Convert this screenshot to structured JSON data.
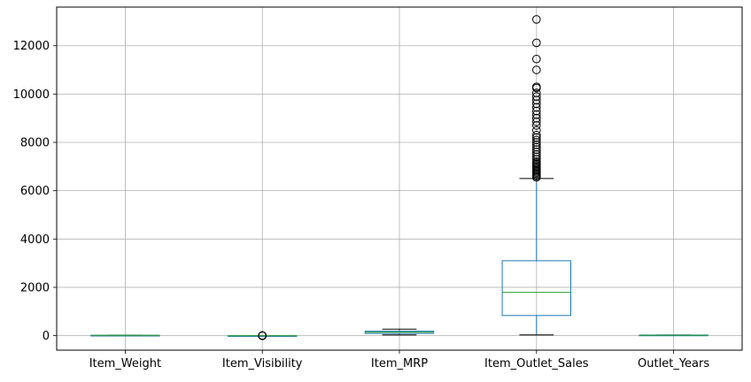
{
  "chart_data": {
    "type": "box",
    "title": "",
    "xlabel": "",
    "ylabel": "",
    "ylim": [
      -600,
      13600
    ],
    "yticks": [
      0,
      2000,
      4000,
      6000,
      8000,
      10000,
      12000
    ],
    "ytick_labels": [
      "0",
      "2000",
      "4000",
      "6000",
      "8000",
      "10000",
      "12000"
    ],
    "grid": true,
    "colors": {
      "box": "#1f77b4",
      "median": "#2ca02c",
      "whisker": "#000000",
      "grid": "#b0b0b0",
      "flier": "#000000"
    },
    "categories": [
      "Item_Weight",
      "Item_Visibility",
      "Item_MRP",
      "Item_Outlet_Sales",
      "Outlet_Years"
    ],
    "boxes": [
      {
        "name": "Item_Weight",
        "whislo": 4.5,
        "q1": 8.8,
        "med": 12.6,
        "q3": 16.0,
        "whishi": 21.4,
        "fliers": []
      },
      {
        "name": "Item_Visibility",
        "whislo": 0,
        "q1": 0.03,
        "med": 0.05,
        "q3": 0.09,
        "whishi": 0.19,
        "fliers": [
          0.2,
          0.22,
          0.25,
          0.28,
          0.3,
          0.33
        ]
      },
      {
        "name": "Item_MRP",
        "whislo": 31,
        "q1": 94,
        "med": 143,
        "q3": 186,
        "whishi": 267,
        "fliers": []
      },
      {
        "name": "Item_Outlet_Sales",
        "whislo": 33,
        "q1": 834,
        "med": 1794,
        "q3": 3101,
        "whishi": 6503,
        "fliers": [
          6550,
          6600,
          6650,
          6700,
          6750,
          6800,
          6850,
          6900,
          6950,
          7000,
          7050,
          7100,
          7150,
          7200,
          7300,
          7400,
          7500,
          7600,
          7700,
          7800,
          7900,
          8000,
          8100,
          8200,
          8300,
          8500,
          8700,
          8850,
          9000,
          9150,
          9300,
          9450,
          9600,
          9750,
          9900,
          10050,
          10250,
          10300,
          11000,
          11450,
          12120,
          13090
        ]
      },
      {
        "name": "Outlet_Years",
        "whislo": 4,
        "q1": 9,
        "med": 14,
        "q3": 26,
        "whishi": 28,
        "fliers": []
      }
    ]
  }
}
